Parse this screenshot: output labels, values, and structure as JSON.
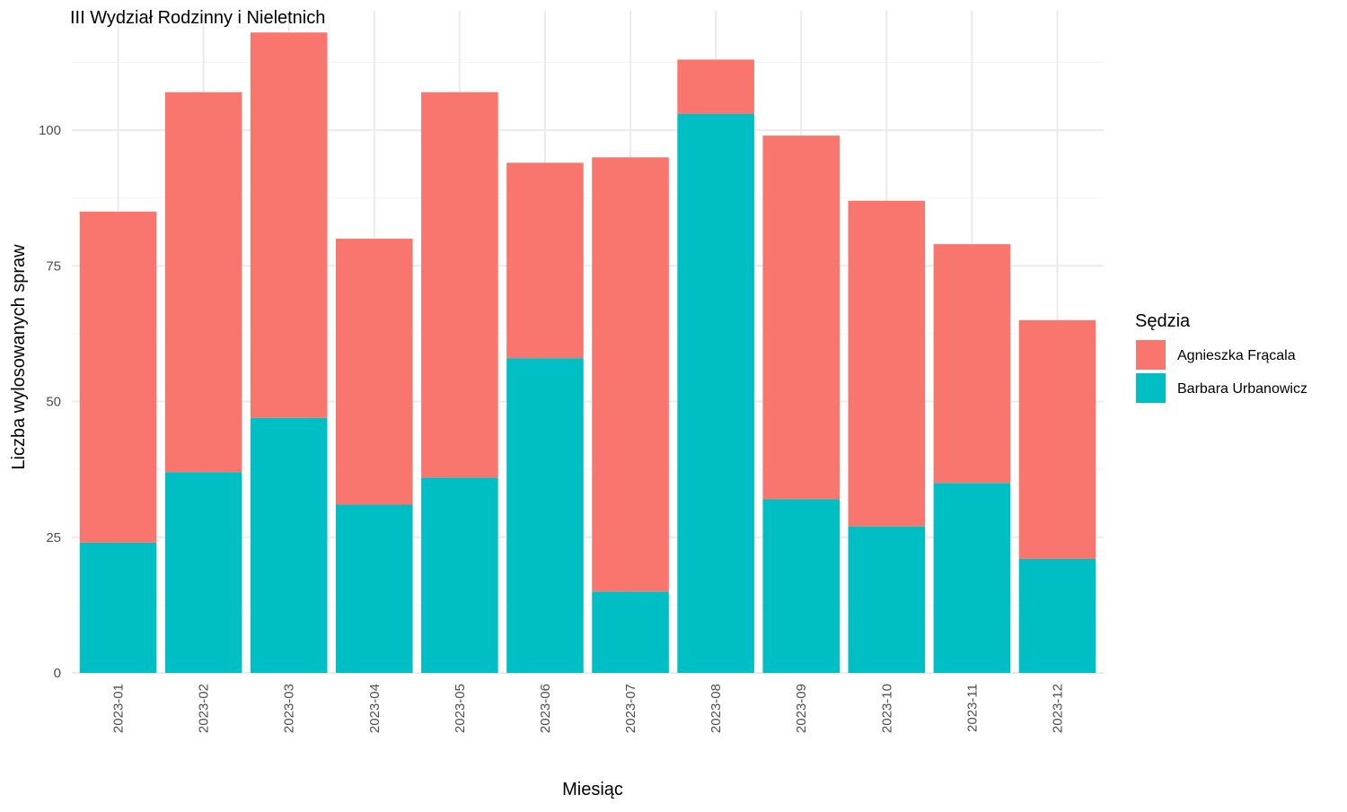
{
  "chart_data": {
    "type": "bar",
    "stacked": true,
    "title": "III Wydział Rodzinny i Nieletnich",
    "xlabel": "Miesiąc",
    "ylabel": "Liczba wylosowanych spraw",
    "categories": [
      "2023-01",
      "2023-02",
      "2023-03",
      "2023-04",
      "2023-05",
      "2023-06",
      "2023-07",
      "2023-08",
      "2023-09",
      "2023-10",
      "2023-11",
      "2023-12"
    ],
    "series": [
      {
        "name": "Barbara Urbanowicz",
        "color": "#00BFC4",
        "values": [
          24,
          37,
          47,
          31,
          36,
          58,
          15,
          103,
          32,
          27,
          35,
          21
        ]
      },
      {
        "name": "Agnieszka Frącala",
        "color": "#F8766D",
        "values": [
          61,
          70,
          71,
          49,
          71,
          36,
          80,
          10,
          67,
          60,
          44,
          44
        ]
      }
    ],
    "ylim": [
      0,
      122
    ],
    "yticks": [
      0,
      25,
      50,
      75,
      100
    ],
    "grid": true,
    "legend": {
      "title": "Sędzia",
      "position": "right",
      "entries": [
        {
          "label": "Agnieszka Frącala",
          "color": "#F8766D"
        },
        {
          "label": "Barbara Urbanowicz",
          "color": "#00BFC4"
        }
      ]
    }
  }
}
